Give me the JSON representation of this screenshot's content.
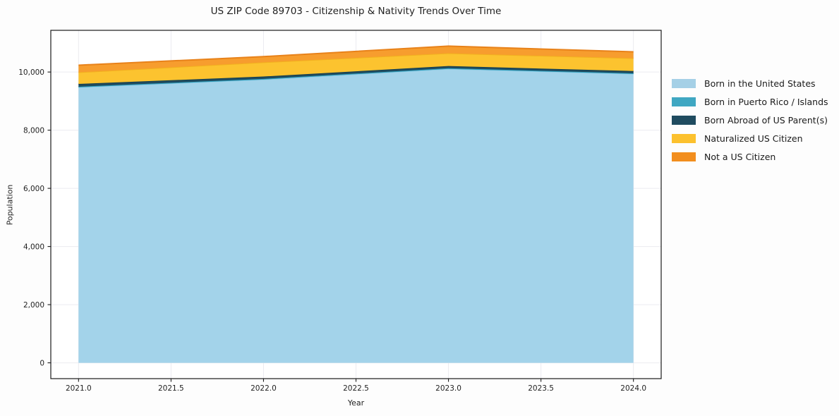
{
  "title": "US ZIP Code 89703 - Citizenship & Nativity Trends Over Time",
  "chart_data": {
    "type": "area",
    "stacked": true,
    "title": "US ZIP Code 89703 - Citizenship & Nativity Trends Over Time",
    "xlabel": "Year",
    "ylabel": "Population",
    "x": [
      2021,
      2022,
      2023,
      2024
    ],
    "series": [
      {
        "name": "Born in the United States",
        "color": "#A5D0E6",
        "fill": "#A3D3EA",
        "edge": "#8FC9E2",
        "values": [
          9480,
          9745,
          10110,
          9940
        ]
      },
      {
        "name": "Born in Puerto Rico / Islands",
        "color": "#3FA7C2",
        "fill": "#3FA7C2",
        "edge": "#2D9FBE",
        "values": [
          15,
          20,
          20,
          15
        ]
      },
      {
        "name": "Born Abroad of US Parent(s)",
        "color": "#1F4B5F",
        "fill": "#1F4B5F",
        "edge": "#16404F",
        "values": [
          95,
          80,
          75,
          80
        ]
      },
      {
        "name": "Naturalized US Citizen",
        "color": "#FCC12E",
        "fill": "#FCC32F",
        "edge": "#F2B01F",
        "values": [
          400,
          490,
          440,
          440
        ]
      },
      {
        "name": "Not a US Citizen",
        "color": "#F28E1E",
        "fill": "#F79D2E",
        "edge": "#E8821A",
        "values": [
          245,
          195,
          245,
          220
        ]
      }
    ],
    "totals": [
      10235,
      10530,
      10890,
      10695
    ],
    "xlim": [
      2020.85,
      2024.15
    ],
    "ylim": [
      -544,
      11434
    ],
    "xtick_values": [
      2021.0,
      2021.5,
      2022.0,
      2022.5,
      2023.0,
      2023.5,
      2024.0
    ],
    "xtick_labels": [
      "2021.0",
      "2021.5",
      "2022.0",
      "2022.5",
      "2023.0",
      "2023.5",
      "2024.0"
    ],
    "ytick_values": [
      0,
      2000,
      4000,
      6000,
      8000,
      10000
    ],
    "ytick_labels": [
      "0",
      "2,000",
      "4,000",
      "6,000",
      "8,000",
      "10,000"
    ],
    "grid": true,
    "grid_color": "#ebebf0",
    "plot_bg": "#ffffff",
    "spine_color": "#1a1a1a",
    "tick_text_color": "#1f1f1f",
    "legend_position": "right-outside-top"
  }
}
